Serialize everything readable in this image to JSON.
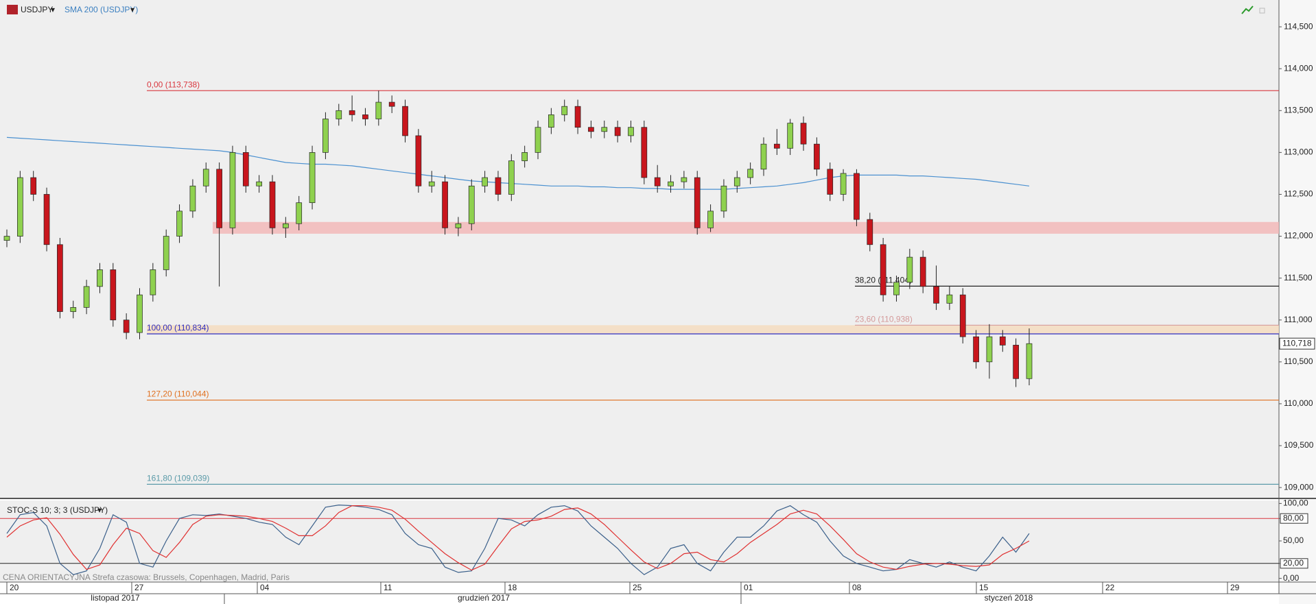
{
  "chart_data": {
    "type": "candlestick",
    "symbol": "USDJPY",
    "indicator": "SMA 200 (USDJPY)",
    "dropdown": "▾",
    "ylim": [
      108.87,
      114.82
    ],
    "yticks": [
      {
        "value": 109.0,
        "label": "109,000"
      },
      {
        "value": 109.5,
        "label": "109,500"
      },
      {
        "value": 110.0,
        "label": "110,000"
      },
      {
        "value": 110.5,
        "label": "110,500"
      },
      {
        "value": 111.0,
        "label": "111,000"
      },
      {
        "value": 111.5,
        "label": "111,500"
      },
      {
        "value": 112.0,
        "label": "112,000"
      },
      {
        "value": 112.5,
        "label": "112,500"
      },
      {
        "value": 113.0,
        "label": "113,000"
      },
      {
        "value": 113.5,
        "label": "113,500"
      },
      {
        "value": 114.0,
        "label": "114,000"
      },
      {
        "value": 114.5,
        "label": "114,500"
      }
    ],
    "last_price": {
      "value": 110.718,
      "label": "110,718"
    },
    "up_color": "#8fd14f",
    "down_color": "#c8161d",
    "sma_color": "#4a90d0",
    "candles": [
      [
        111.95,
        112.08,
        111.87,
        112.0
      ],
      [
        112.0,
        112.78,
        111.92,
        112.7
      ],
      [
        112.7,
        112.78,
        112.42,
        112.5
      ],
      [
        112.5,
        112.58,
        111.82,
        111.9
      ],
      [
        111.9,
        111.98,
        111.02,
        111.1
      ],
      [
        111.1,
        111.23,
        111.02,
        111.15
      ],
      [
        111.15,
        111.48,
        111.07,
        111.4
      ],
      [
        111.4,
        111.68,
        111.32,
        111.6
      ],
      [
        111.6,
        111.68,
        110.92,
        111.0
      ],
      [
        111.0,
        111.08,
        110.77,
        110.85
      ],
      [
        110.85,
        111.38,
        110.77,
        111.3
      ],
      [
        111.3,
        111.68,
        111.22,
        111.6
      ],
      [
        111.6,
        112.08,
        111.52,
        112.0
      ],
      [
        112.0,
        112.38,
        111.92,
        112.3
      ],
      [
        112.3,
        112.68,
        112.22,
        112.6
      ],
      [
        112.6,
        112.88,
        112.52,
        112.8
      ],
      [
        112.8,
        112.88,
        111.4,
        112.1
      ],
      [
        112.1,
        113.08,
        112.02,
        113.0
      ],
      [
        113.0,
        113.08,
        112.52,
        112.6
      ],
      [
        112.6,
        112.73,
        112.52,
        112.65
      ],
      [
        112.65,
        112.73,
        112.02,
        112.1
      ],
      [
        112.1,
        112.23,
        111.98,
        112.15
      ],
      [
        112.15,
        112.48,
        112.07,
        112.4
      ],
      [
        112.4,
        113.08,
        112.32,
        113.0
      ],
      [
        113.0,
        113.48,
        112.92,
        113.4
      ],
      [
        113.4,
        113.58,
        113.32,
        113.5
      ],
      [
        113.5,
        113.68,
        113.37,
        113.45
      ],
      [
        113.45,
        113.53,
        113.32,
        113.4
      ],
      [
        113.4,
        113.738,
        113.32,
        113.6
      ],
      [
        113.6,
        113.68,
        113.47,
        113.55
      ],
      [
        113.55,
        113.63,
        113.12,
        113.2
      ],
      [
        113.2,
        113.28,
        112.52,
        112.6
      ],
      [
        112.6,
        112.78,
        112.52,
        112.65
      ],
      [
        112.65,
        112.73,
        112.02,
        112.1
      ],
      [
        112.1,
        112.23,
        112.0,
        112.15
      ],
      [
        112.15,
        112.68,
        112.07,
        112.6
      ],
      [
        112.6,
        112.78,
        112.52,
        112.7
      ],
      [
        112.7,
        112.78,
        112.42,
        112.5
      ],
      [
        112.5,
        112.98,
        112.42,
        112.9
      ],
      [
        112.9,
        113.08,
        112.82,
        113.0
      ],
      [
        113.0,
        113.38,
        112.92,
        113.3
      ],
      [
        113.3,
        113.53,
        113.22,
        113.45
      ],
      [
        113.45,
        113.63,
        113.37,
        113.55
      ],
      [
        113.55,
        113.63,
        113.22,
        113.3
      ],
      [
        113.3,
        113.38,
        113.17,
        113.25
      ],
      [
        113.25,
        113.38,
        113.17,
        113.3
      ],
      [
        113.3,
        113.38,
        113.12,
        113.2
      ],
      [
        113.2,
        113.38,
        113.12,
        113.3
      ],
      [
        113.3,
        113.38,
        112.62,
        112.7
      ],
      [
        112.7,
        112.85,
        112.52,
        112.6
      ],
      [
        112.6,
        112.73,
        112.52,
        112.65
      ],
      [
        112.65,
        112.78,
        112.57,
        112.7
      ],
      [
        112.7,
        112.78,
        112.02,
        112.1
      ],
      [
        112.1,
        112.38,
        112.05,
        112.3
      ],
      [
        112.3,
        112.68,
        112.22,
        112.6
      ],
      [
        112.6,
        112.78,
        112.52,
        112.7
      ],
      [
        112.7,
        112.88,
        112.62,
        112.8
      ],
      [
        112.8,
        113.18,
        112.72,
        113.1
      ],
      [
        113.1,
        113.28,
        112.97,
        113.05
      ],
      [
        113.05,
        113.4,
        112.97,
        113.35
      ],
      [
        113.35,
        113.43,
        113.02,
        113.1
      ],
      [
        113.1,
        113.18,
        112.72,
        112.8
      ],
      [
        112.8,
        112.88,
        112.42,
        112.5
      ],
      [
        112.5,
        112.8,
        112.42,
        112.75
      ],
      [
        112.75,
        112.8,
        112.12,
        112.2
      ],
      [
        112.2,
        112.28,
        111.82,
        111.9
      ],
      [
        111.9,
        111.98,
        111.22,
        111.3
      ],
      [
        111.3,
        111.53,
        111.22,
        111.45
      ],
      [
        111.45,
        111.85,
        111.37,
        111.75
      ],
      [
        111.75,
        111.83,
        111.32,
        111.4
      ],
      [
        111.4,
        111.65,
        111.12,
        111.2
      ],
      [
        111.2,
        111.4,
        111.12,
        111.3
      ],
      [
        111.3,
        111.38,
        110.72,
        110.8
      ],
      [
        110.8,
        110.88,
        110.42,
        110.5
      ],
      [
        110.5,
        110.95,
        110.3,
        110.8
      ],
      [
        110.8,
        110.88,
        110.62,
        110.7
      ],
      [
        110.7,
        110.78,
        110.2,
        110.3
      ],
      [
        110.3,
        110.9,
        110.22,
        110.718
      ]
    ],
    "sma": [
      113.18,
      113.17,
      113.16,
      113.15,
      113.14,
      113.13,
      113.12,
      113.11,
      113.1,
      113.09,
      113.08,
      113.07,
      113.06,
      113.05,
      113.04,
      113.03,
      113.02,
      113.0,
      112.97,
      112.94,
      112.91,
      112.88,
      112.87,
      112.86,
      112.86,
      112.85,
      112.84,
      112.82,
      112.8,
      112.78,
      112.76,
      112.74,
      112.72,
      112.7,
      112.68,
      112.66,
      112.65,
      112.64,
      112.63,
      112.62,
      112.61,
      112.6,
      112.6,
      112.6,
      112.59,
      112.59,
      112.58,
      112.58,
      112.57,
      112.57,
      112.56,
      112.56,
      112.56,
      112.56,
      112.56,
      112.57,
      112.58,
      112.59,
      112.6,
      112.62,
      112.64,
      112.67,
      112.7,
      112.72,
      112.73,
      112.73,
      112.73,
      112.73,
      112.72,
      112.72,
      112.71,
      112.7,
      112.69,
      112.68,
      112.66,
      112.64,
      112.62,
      112.6
    ],
    "fib_levels": [
      {
        "label": "0,00 (113,738)",
        "price": 113.738,
        "color": "#d9363e"
      },
      {
        "label": "100,00 (110,834)",
        "price": 110.834,
        "color": "#2f2fc0"
      },
      {
        "label": "127,20 (110,044)",
        "price": 110.044,
        "color": "#e07020"
      },
      {
        "label": "161,80 (109,039)",
        "price": 109.039,
        "color": "#5a9aa8"
      },
      {
        "label": "38,20 (111,404)",
        "price": 111.404,
        "color": "#222222"
      },
      {
        "label": "23,60 (110,938)",
        "price": 110.938,
        "color": "#d49a9a"
      }
    ],
    "zones": [
      {
        "low": 112.03,
        "high": 112.17,
        "color": "#f2b8b8"
      },
      {
        "low": 110.834,
        "high": 110.938,
        "color": "#f5dcc0"
      }
    ],
    "xticks": [
      "20",
      "27",
      "04",
      "11",
      "18",
      "25",
      "01",
      "08",
      "15",
      "22",
      "29"
    ],
    "months": [
      "listopad 2017",
      "grudzień 2017",
      "styczeń 2018"
    ],
    "footnote": "CENA ORIENTACYJNA   Strefa czasowa: Brussels, Copenhagen, Madrid, Paris",
    "stochastic": {
      "title": "STOC-S 10; 3; 3 (USDJPY)",
      "ylim": [
        -4,
        104
      ],
      "yticks": [
        {
          "value": 0,
          "label": "0,00"
        },
        {
          "value": 20,
          "label": "20,00"
        },
        {
          "value": 50,
          "label": "50,00"
        },
        {
          "value": 80,
          "label": "80,00"
        },
        {
          "value": 100,
          "label": "100,00"
        }
      ],
      "levels": [
        {
          "value": 80,
          "color": "#d9363e"
        },
        {
          "value": 20,
          "color": "#222222"
        }
      ],
      "k_color": "#3a5f8a",
      "d_color": "#e03030",
      "k": [
        60,
        85,
        88,
        70,
        20,
        5,
        10,
        40,
        85,
        75,
        20,
        15,
        50,
        80,
        85,
        84,
        86,
        83,
        80,
        75,
        72,
        55,
        45,
        70,
        95,
        98,
        97,
        95,
        92,
        85,
        60,
        45,
        40,
        15,
        8,
        10,
        40,
        80,
        78,
        70,
        85,
        95,
        97,
        90,
        70,
        55,
        40,
        20,
        5,
        15,
        40,
        45,
        20,
        10,
        35,
        55,
        55,
        70,
        90,
        97,
        85,
        75,
        50,
        30,
        20,
        15,
        10,
        12,
        25,
        20,
        15,
        22,
        15,
        10,
        30,
        55,
        35,
        60
      ],
      "d": [
        55,
        70,
        78,
        81,
        59,
        32,
        12,
        18,
        45,
        67,
        60,
        37,
        28,
        48,
        72,
        83,
        85,
        84,
        83,
        80,
        76,
        67,
        57,
        57,
        70,
        88,
        97,
        97,
        95,
        91,
        79,
        63,
        48,
        33,
        21,
        11,
        19,
        43,
        66,
        76,
        78,
        83,
        92,
        94,
        86,
        72,
        55,
        38,
        22,
        13,
        20,
        33,
        35,
        25,
        22,
        33,
        48,
        60,
        72,
        86,
        91,
        86,
        70,
        52,
        33,
        22,
        15,
        12,
        16,
        19,
        20,
        19,
        17,
        16,
        18,
        32,
        40,
        50
      ]
    }
  }
}
